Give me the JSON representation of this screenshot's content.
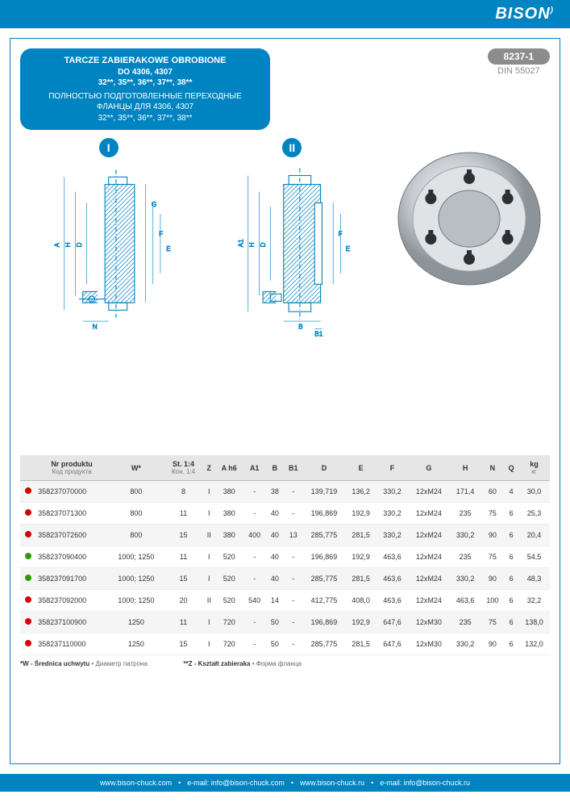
{
  "brand": "BISON",
  "header": {
    "title_line1": "TARCZE ZABIERAKOWE OBROBIONE",
    "title_line2": "DO 4306, 4307",
    "title_line3": "32**, 35**, 36**, 37**, 38**",
    "subtitle_ru1": "ПОЛНОСТЬЮ ПОДГОТОВЛЕННЫЕ ПЕРЕХОДНЫЕ",
    "subtitle_ru2": "ФЛАНЦЫ ДЛЯ 4306, 4307",
    "subtitle_ru3": "32**, 35**, 36**, 37**, 38**",
    "product_code": "8237-1",
    "standard": "DIN 55027"
  },
  "diagram": {
    "markers": {
      "I": "I",
      "II": "II"
    },
    "dim_labels_I": [
      "A",
      "G",
      "H",
      "D",
      "F",
      "E",
      "N"
    ],
    "dim_labels_II": [
      "A1",
      "H",
      "D",
      "F",
      "E",
      "B",
      "B1"
    ],
    "colors": {
      "outline": "#0083c1",
      "hatch": "#0083c1",
      "dim": "#0083c1",
      "badge_bg": "#0083c1"
    }
  },
  "photo": {
    "rim_color": "#c8ccd0",
    "face_color": "#dfe3e6",
    "shadow_color": "#6e7880",
    "bolt_color": "#2c2f33",
    "bolt_count": 6
  },
  "table": {
    "columns": [
      {
        "h": "",
        "sub": ""
      },
      {
        "h": "Nr produktu",
        "sub": "Код продукта"
      },
      {
        "h": "W*",
        "sub": ""
      },
      {
        "h": "St. 1:4",
        "sub": "Кон. 1:4"
      },
      {
        "h": "Z",
        "sub": ""
      },
      {
        "h": "A h6",
        "sub": ""
      },
      {
        "h": "A1",
        "sub": ""
      },
      {
        "h": "B",
        "sub": ""
      },
      {
        "h": "B1",
        "sub": ""
      },
      {
        "h": "D",
        "sub": ""
      },
      {
        "h": "E",
        "sub": ""
      },
      {
        "h": "F",
        "sub": ""
      },
      {
        "h": "G",
        "sub": ""
      },
      {
        "h": "H",
        "sub": ""
      },
      {
        "h": "N",
        "sub": ""
      },
      {
        "h": "Q",
        "sub": ""
      },
      {
        "h": "kg",
        "sub": "кг"
      }
    ],
    "dot_colors": {
      "red": "#d40000",
      "green": "#2d9b00"
    },
    "rows": [
      {
        "dot": "red",
        "cells": [
          "358237070000",
          "800",
          "8",
          "I",
          "380",
          "-",
          "38",
          "-",
          "139,719",
          "136,2",
          "330,2",
          "12xM24",
          "171,4",
          "60",
          "4",
          "30,0"
        ]
      },
      {
        "dot": "red",
        "cells": [
          "358237071300",
          "800",
          "11",
          "I",
          "380",
          "-",
          "40",
          "-",
          "196,869",
          "192,9",
          "330,2",
          "12xM24",
          "235",
          "75",
          "6",
          "25,3"
        ]
      },
      {
        "dot": "red",
        "cells": [
          "358237072600",
          "800",
          "15",
          "II",
          "380",
          "400",
          "40",
          "13",
          "285,775",
          "281,5",
          "330,2",
          "12xM24",
          "330,2",
          "90",
          "6",
          "20,4"
        ]
      },
      {
        "dot": "green",
        "cells": [
          "358237090400",
          "1000; 1250",
          "11",
          "I",
          "520",
          "-",
          "40",
          "-",
          "196,869",
          "192,9",
          "463,6",
          "12xM24",
          "235",
          "75",
          "6",
          "54,5"
        ]
      },
      {
        "dot": "green",
        "cells": [
          "358237091700",
          "1000; 1250",
          "15",
          "I",
          "520",
          "-",
          "40",
          "-",
          "285,775",
          "281,5",
          "463,6",
          "12xM24",
          "330,2",
          "90",
          "6",
          "48,3"
        ]
      },
      {
        "dot": "red",
        "cells": [
          "358237092000",
          "1000; 1250",
          "20",
          "II",
          "520",
          "540",
          "14",
          "-",
          "412,775",
          "408,0",
          "463,6",
          "12xM24",
          "463,6",
          "100",
          "6",
          "32,2"
        ]
      },
      {
        "dot": "red",
        "cells": [
          "358237100900",
          "1250",
          "11",
          "I",
          "720",
          "-",
          "50",
          "-",
          "196,869",
          "192,9",
          "647,6",
          "12xM30",
          "235",
          "75",
          "6",
          "138,0"
        ]
      },
      {
        "dot": "red",
        "cells": [
          "358237110000",
          "1250",
          "15",
          "I",
          "720",
          "-",
          "50",
          "-",
          "285,775",
          "281,5",
          "647,6",
          "12xM30",
          "330,2",
          "90",
          "6",
          "132,0"
        ]
      }
    ]
  },
  "footnotes": {
    "w": "*W - Średnica uchwytu",
    "w_ru": "Диаметр патрона",
    "z": "**Z - Kształt zabieraka",
    "z_ru": "Форма фланца"
  },
  "footer": {
    "items": [
      "www.bison-chuck.com",
      "e-mail: info@bison-chuck.com",
      "www.bison-chuck.ru",
      "e-mail: info@bison-chuck.ru"
    ],
    "sep": "•"
  }
}
